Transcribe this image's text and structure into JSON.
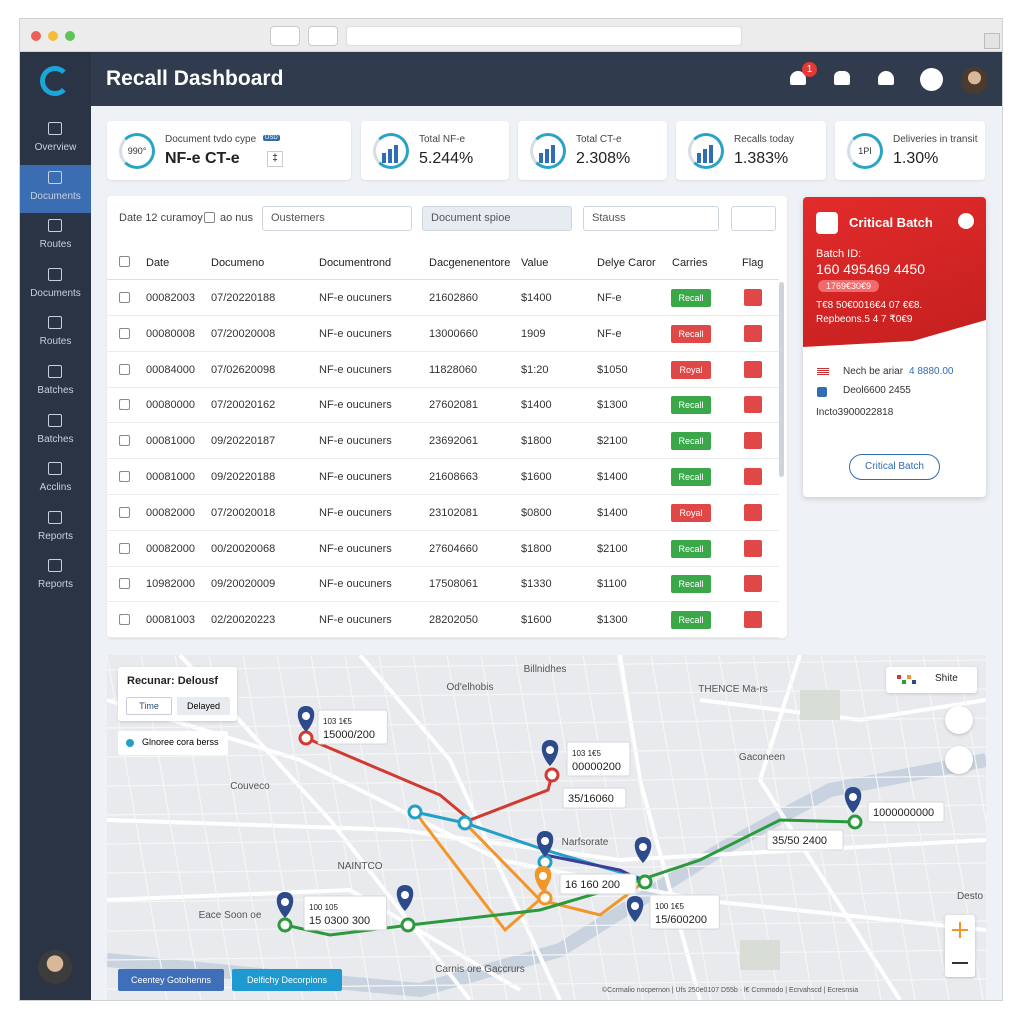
{
  "header": {
    "title": "Recall Dashboard",
    "notification_count": "1"
  },
  "sidebar": {
    "items": [
      "Overview",
      "Documents",
      "Routes",
      "Documents",
      "Routes",
      "Batches",
      "Batches",
      "Acclins",
      "Reports",
      "Reports"
    ],
    "active": 1
  },
  "kpis": [
    {
      "ring": "990°",
      "label": "Document tvdo cype",
      "tag": "USD",
      "value": "NF-e  CT-e",
      "extra": "‡"
    },
    {
      "label": "Total NF-e",
      "value": "5.244%"
    },
    {
      "label": "Total CT-e",
      "value": "2.308%"
    },
    {
      "label": "Recalls today",
      "value": "1.383%"
    },
    {
      "ring": "1PI",
      "label": "Deliveries in transit",
      "value": "1.30%"
    }
  ],
  "filters": {
    "date": "Date 12 curamoy",
    "checkbox": "ao nus",
    "customers": "Oustemers",
    "document": "Document spioe",
    "status": "Stauss"
  },
  "table": {
    "columns": [
      "Date",
      "Documeno",
      "Documentrond",
      "Dacgenenentore",
      "Value",
      "Delye Caror",
      "Carries",
      "Flag"
    ],
    "rows": [
      [
        "00082003",
        "07/20220188",
        "NF-e oucuners",
        "21602860",
        "$1400",
        "NF-e",
        "Recall"
      ],
      [
        "00080008",
        "07/20020008",
        "NF-e oucuners",
        "13000660",
        "1909",
        "NF-e",
        "Recall"
      ],
      [
        "00084000",
        "07/02620098",
        "NF-e oucuners",
        "11828060",
        "$1:20",
        "$1050",
        "Royal"
      ],
      [
        "00080000",
        "07/20020162",
        "NF-e oucuners",
        "27602081",
        "$1400",
        "$1300",
        "Recall"
      ],
      [
        "00081000",
        "09/20220187",
        "NF-e oucuners",
        "23692061",
        "$1800",
        "$2100",
        "Recall"
      ],
      [
        "00081000",
        "09/20220188",
        "NF-e oucuners",
        "21608663",
        "$1600",
        "$1400",
        "Recall"
      ],
      [
        "00082000",
        "07/20020018",
        "NF-e oucuners",
        "23102081",
        "$0800",
        "$1400",
        "Royal"
      ],
      [
        "00082000",
        "00/20020068",
        "NF-e oucuners",
        "27604660",
        "$1800",
        "$2100",
        "Recall"
      ],
      [
        "10982000",
        "09/20020009",
        "NF-e oucuners",
        "17508061",
        "$1330",
        "$1100",
        "Recall"
      ],
      [
        "00081003",
        "02/20020223",
        "NF-e oucuners",
        "28202050",
        "$1600",
        "$1300",
        "Recall"
      ]
    ],
    "status_colors": [
      "#3aa848",
      "#e04848",
      "#e04848",
      "#3aa848",
      "#3aa848",
      "#3aa848",
      "#e04848",
      "#3aa848",
      "#3aa848",
      "#3aa848"
    ]
  },
  "critical": {
    "title": "Critical Batch",
    "batch_label": "Batch ID:",
    "batch_id": "160 495469 4450",
    "pill": "1769€30€9",
    "line1": "T€8 50€0016€4 07 €€8.",
    "line2": "Repbeons.5 4 7 ₹0€9",
    "item1": "Nech be ariar",
    "item1_value": "4 8880.00",
    "item2": "Deol6600 2455",
    "item3": "Incto3900022818",
    "button": "Critical Batch"
  },
  "map": {
    "legend_title": "Recunar: Delousf",
    "tabs": [
      "Time",
      "Delayed"
    ],
    "legend_item": "Glnoree cora berss",
    "view_button": "Shite",
    "labels": [
      "Od'elhobis",
      "Billnidhes",
      "THENCE Ma-rs",
      "Gaconeen",
      "Couveco",
      "NAINTCO",
      "Eace Soon oe",
      "Narfsorate",
      "Desto",
      "Carnis ore Gaccrurs"
    ],
    "callouts": [
      [
        "103 1€5",
        "15000/200"
      ],
      [
        "103 1€5",
        "00000200"
      ],
      [
        "35/16060"
      ],
      [
        "35/50 2400"
      ],
      [
        "100 1€5",
        "15/600200"
      ],
      [
        "1000000000"
      ],
      [
        "16 160 200"
      ],
      [
        "100 105",
        "15 0300 300"
      ]
    ],
    "buttons": [
      "Ceentey Gotohenns",
      "Delfichy Decorpions"
    ],
    "attribution": "©Ccrmalio nocpernon | Ufs 250e0107 D55b · l€ Ccmmodo | Ecrvahscd | Ecresnsia"
  }
}
